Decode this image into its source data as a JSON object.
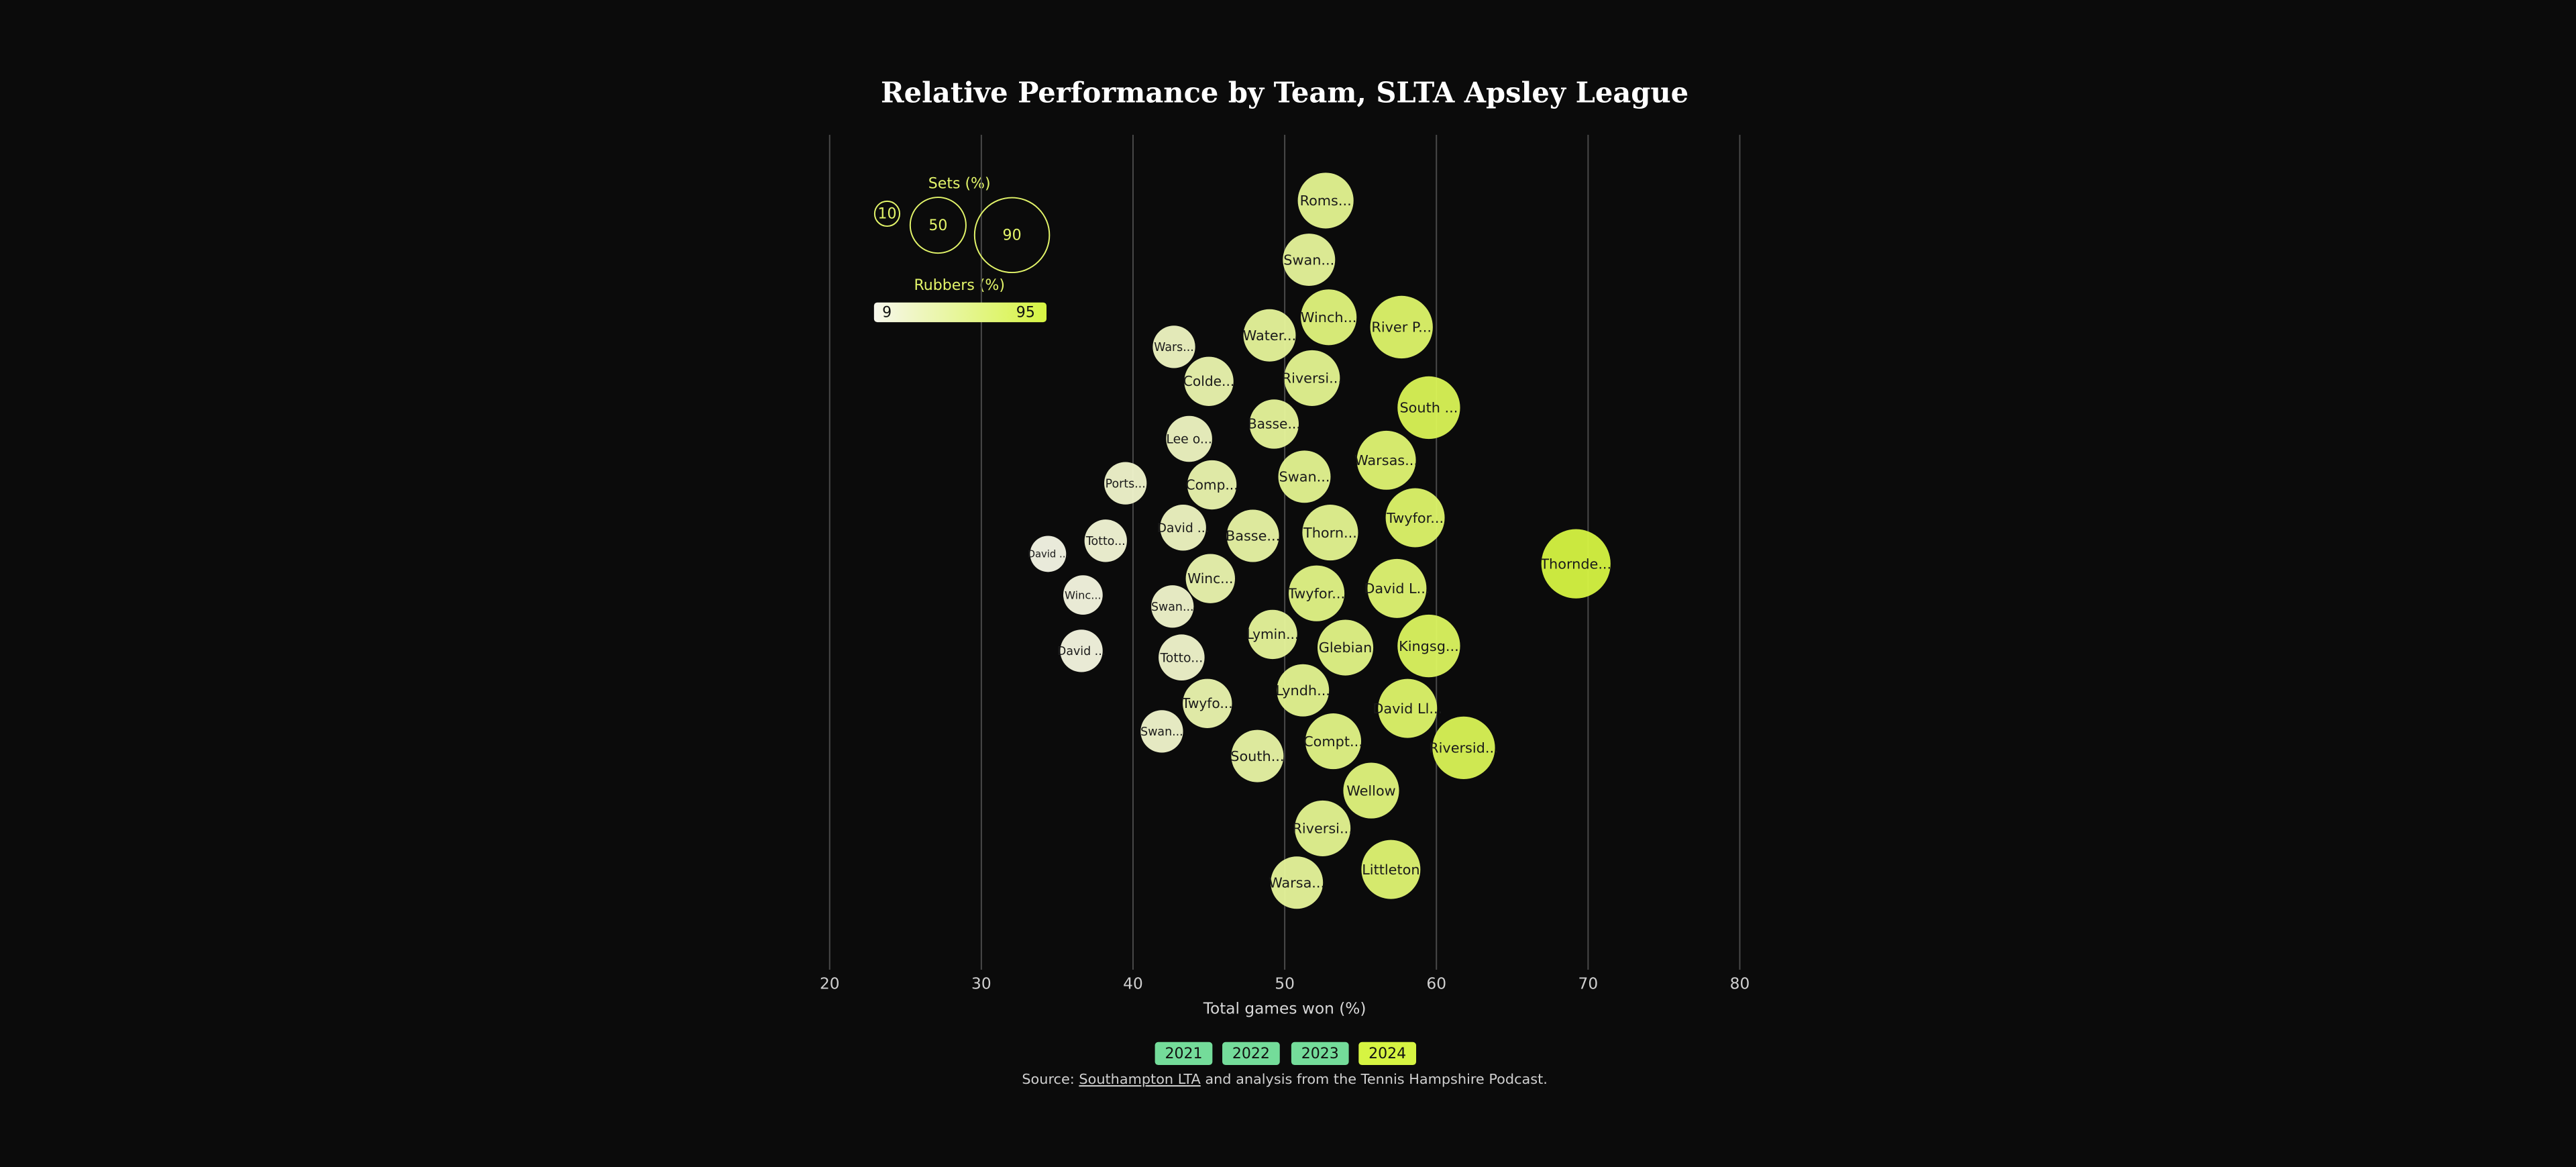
{
  "chart_data": {
    "type": "bubble",
    "title": "Relative Performance by Team, SLTA Apsley League",
    "x_label": "Total games won (%)",
    "xlim": [
      20,
      80
    ],
    "xticks": [
      20,
      30,
      40,
      50,
      60,
      70,
      80
    ],
    "grid": true,
    "labels": [
      "Roms...",
      "Swan...",
      "Winch...",
      "River P...",
      "Water...",
      "Wars...",
      "Riversi...",
      "Colde...",
      "South ...",
      "Basse...",
      "Lee o...",
      "Warsas...",
      "Ports...",
      "Comp...",
      "Swan...",
      "Twyfor...",
      "David ...",
      "Basse...",
      "Thorn...",
      "Totto...",
      "David ...",
      "Thornde...",
      "Winc...",
      "Twyfor...",
      "David L...",
      "Winc...",
      "Swan...",
      "Lymin...",
      "Glebian",
      "Kingsg...",
      "David ...",
      "Totto...",
      "Twyfo...",
      "Lyndh...",
      "David Ll...",
      "Swan...",
      "Compt...",
      "South...",
      "Riversid...",
      "Wellow",
      "Riversi...",
      "Littleton",
      "Warsa..."
    ],
    "x": [
      52.7,
      51.6,
      52.9,
      57.7,
      49.0,
      42.7,
      51.8,
      45.0,
      59.5,
      49.3,
      43.7,
      56.7,
      39.5,
      45.2,
      51.3,
      58.6,
      43.3,
      47.9,
      53.0,
      38.2,
      34.4,
      69.2,
      45.1,
      52.1,
      57.4,
      36.7,
      42.6,
      49.2,
      54.0,
      59.5,
      36.6,
      43.2,
      44.9,
      51.2,
      58.1,
      41.9,
      53.2,
      48.2,
      61.8,
      55.7,
      52.5,
      57.0,
      50.8
    ],
    "sizes": [
      50,
      44,
      50,
      63,
      44,
      29,
      50,
      39,
      63,
      39,
      34,
      56,
      29,
      39,
      44,
      56,
      34,
      44,
      50,
      29,
      21,
      77,
      39,
      50,
      56,
      25,
      29,
      39,
      50,
      63,
      29,
      34,
      39,
      44,
      56,
      29,
      50,
      44,
      63,
      50,
      50,
      56,
      44
    ],
    "rubbers": [
      55,
      50,
      65,
      75,
      50,
      30,
      55,
      40,
      85,
      50,
      30,
      70,
      25,
      40,
      55,
      75,
      30,
      45,
      55,
      20,
      12,
      95,
      40,
      60,
      70,
      15,
      25,
      50,
      60,
      80,
      15,
      25,
      40,
      55,
      75,
      25,
      60,
      45,
      85,
      65,
      55,
      70,
      50
    ],
    "size_legend": {
      "title": "Sets (%)",
      "values": [
        10,
        50,
        90
      ]
    },
    "color_legend": {
      "title": "Rubbers (%)",
      "range": [
        9,
        95
      ],
      "colors": [
        "#f7f7ec",
        "#d6f442"
      ]
    }
  },
  "controls": {
    "years": [
      "2021",
      "2022",
      "2023",
      "2024"
    ],
    "selected": "2024",
    "color": "#74dc9a",
    "selected_color": "#d6f442"
  },
  "source": {
    "prefix": "Source: ",
    "link": "Southampton LTA",
    "suffix": " and analysis from the Tennis Hampshire Podcast."
  }
}
